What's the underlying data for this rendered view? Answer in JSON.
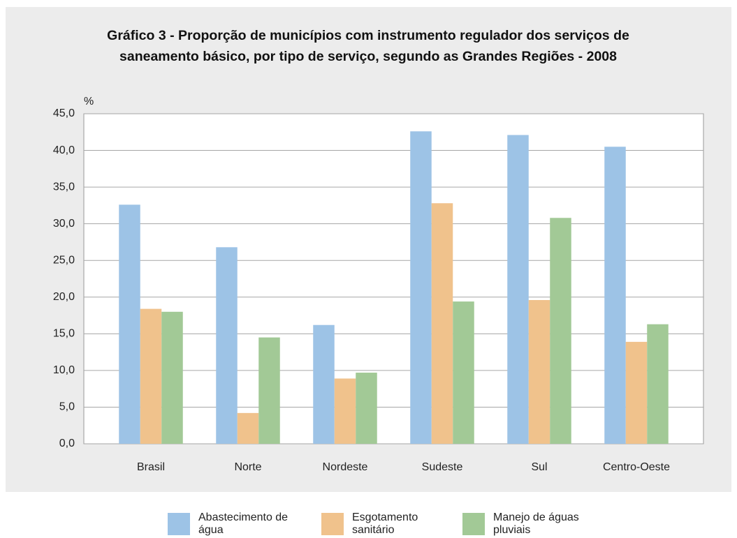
{
  "chart_data": {
    "type": "bar",
    "title": "Gráfico 3 - Proporção de municípios com instrumento regulador dos serviços de saneamento básico, por tipo de serviço, segundo as Grandes Regiões - 2008",
    "y_label": "%",
    "categories": [
      "Brasil",
      "Norte",
      "Nordeste",
      "Sudeste",
      "Sul",
      "Centro-Oeste"
    ],
    "series": [
      {
        "name": "Abastecimento de água",
        "color": "#9dc3e6",
        "values": [
          32.6,
          26.8,
          16.2,
          42.6,
          42.1,
          40.5
        ]
      },
      {
        "name": "Esgotamento sanitário",
        "color": "#f0c28c",
        "values": [
          18.4,
          4.2,
          8.9,
          32.8,
          19.6,
          13.9
        ]
      },
      {
        "name": "Manejo de águas pluviais",
        "color": "#a2c996",
        "values": [
          18.0,
          14.5,
          9.7,
          19.4,
          30.8,
          16.3
        ]
      }
    ],
    "ylim": [
      0,
      45
    ],
    "yticks": [
      {
        "value": 0,
        "label": "0,0"
      },
      {
        "value": 5,
        "label": "5,0"
      },
      {
        "value": 10,
        "label": "10,0"
      },
      {
        "value": 15,
        "label": "15,0"
      },
      {
        "value": 20,
        "label": "20,0"
      },
      {
        "value": 25,
        "label": "25,0"
      },
      {
        "value": 30,
        "label": "30,0"
      },
      {
        "value": 35,
        "label": "35,0"
      },
      {
        "value": 40,
        "label": "40,0"
      },
      {
        "value": 45,
        "label": "45,0"
      }
    ],
    "grid": true
  }
}
